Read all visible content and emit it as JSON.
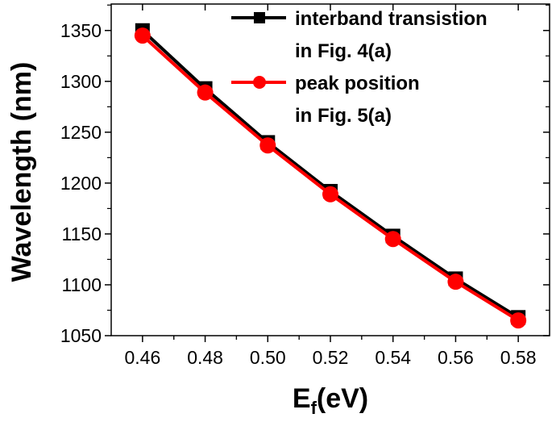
{
  "chart_data": {
    "type": "line",
    "title": "",
    "xlabel_main": "E",
    "xlabel_sub": "f",
    "xlabel_rest": "(eV)",
    "ylabel": "Wavelength (nm)",
    "xlim": [
      0.45,
      0.59
    ],
    "ylim": [
      1050,
      1376
    ],
    "x": [
      0.46,
      0.48,
      0.5,
      0.52,
      0.54,
      0.56,
      0.58
    ],
    "xticks": [
      "0.46",
      "0.48",
      "0.50",
      "0.52",
      "0.54",
      "0.56",
      "0.58"
    ],
    "yticks": [
      "1050",
      "1100",
      "1150",
      "1200",
      "1250",
      "1300",
      "1350"
    ],
    "legend_position": "top-right",
    "series": [
      {
        "name_line1": "interband transistion",
        "name_line2": "in Fig. 4(a)",
        "marker": "square",
        "color": "#000000",
        "values": [
          1350,
          1293,
          1240,
          1192,
          1148,
          1106,
          1068
        ]
      },
      {
        "name_line1": "peak position",
        "name_line2": "in Fig. 5(a)",
        "marker": "circle",
        "color": "#ff0000",
        "values": [
          1345,
          1289,
          1237,
          1189,
          1145,
          1103,
          1065
        ]
      }
    ]
  }
}
